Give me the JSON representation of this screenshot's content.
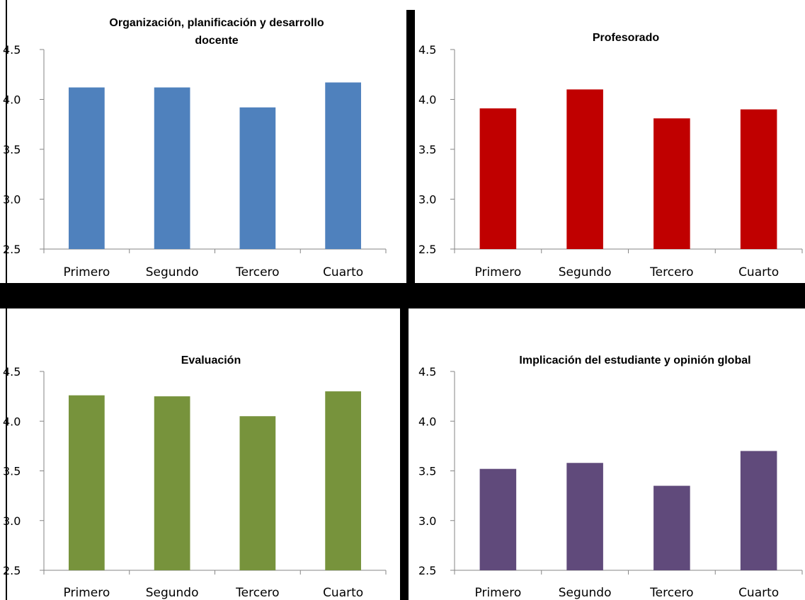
{
  "chart_data": [
    {
      "type": "bar",
      "title": "Organización, planificación  y desarrollo docente",
      "title_lines": [
        "Organización, planificación  y desarrollo",
        "docente"
      ],
      "categories": [
        "Primero",
        "Segundo",
        "Tercero",
        "Cuarto"
      ],
      "values": [
        4.12,
        4.12,
        3.92,
        4.17
      ],
      "color": "#4f81bd",
      "ylim": [
        2.5,
        4.5
      ],
      "yticks": [
        "2.5",
        "3.0",
        "3.5",
        "4.0",
        "4.5"
      ],
      "xlabel": "",
      "ylabel": "",
      "grid": false,
      "legend": "none"
    },
    {
      "type": "bar",
      "title": "Profesorado",
      "title_lines": [
        "Profesorado"
      ],
      "categories": [
        "Primero",
        "Segundo",
        "Tercero",
        "Cuarto"
      ],
      "values": [
        3.91,
        4.1,
        3.81,
        3.9
      ],
      "color": "#c00000",
      "ylim": [
        2.5,
        4.5
      ],
      "yticks": [
        "2.5",
        "3.0",
        "3.5",
        "4.0",
        "4.5"
      ],
      "xlabel": "",
      "ylabel": "",
      "grid": false,
      "legend": "none"
    },
    {
      "type": "bar",
      "title": "Evaluación",
      "title_lines": [
        "Evaluación"
      ],
      "categories": [
        "Primero",
        "Segundo",
        "Tercero",
        "Cuarto"
      ],
      "values": [
        4.26,
        4.25,
        4.05,
        4.3
      ],
      "color": "#77933c",
      "ylim": [
        2.5,
        4.5
      ],
      "yticks": [
        "2.5",
        "3.0",
        "3.5",
        "4.0",
        "4.5"
      ],
      "xlabel": "",
      "ylabel": "",
      "grid": false,
      "legend": "none"
    },
    {
      "type": "bar",
      "title": "Implicación del estudiante y opinión global",
      "title_lines": [
        "Implicación del estudiante y opinión global"
      ],
      "categories": [
        "Primero",
        "Segundo",
        "Tercero",
        "Cuarto"
      ],
      "values": [
        3.52,
        3.58,
        3.35,
        3.7
      ],
      "color": "#604a7b",
      "ylim": [
        2.5,
        4.5
      ],
      "yticks": [
        "2.5",
        "3.0",
        "3.5",
        "4.0",
        "4.5"
      ],
      "xlabel": "",
      "ylabel": "",
      "grid": false,
      "legend": "none"
    }
  ]
}
